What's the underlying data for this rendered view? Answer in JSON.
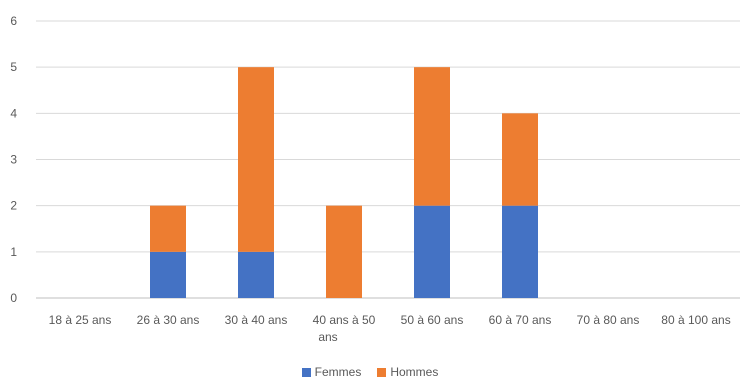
{
  "chart_data": {
    "type": "bar",
    "stacked": true,
    "title": "",
    "xlabel": "",
    "ylabel": "",
    "ylim": [
      0,
      6
    ],
    "yticks": [
      0,
      1,
      2,
      3,
      4,
      5,
      6
    ],
    "grid": true,
    "legend_position": "bottom",
    "categories": [
      "18 à 25 ans",
      "26 à 30 ans",
      "30 à 40 ans",
      "40 ans à 50 ans",
      "50 à 60 ans",
      "60 à 70 ans",
      "70 à 80 ans",
      "80 à 100 ans"
    ],
    "series": [
      {
        "name": "Femmes",
        "color": "#4472C4",
        "values": [
          0,
          1,
          1,
          0,
          2,
          2,
          0,
          0
        ]
      },
      {
        "name": "Hommes",
        "color": "#ED7D31",
        "values": [
          0,
          1,
          4,
          2,
          3,
          2,
          0,
          0
        ]
      }
    ]
  }
}
